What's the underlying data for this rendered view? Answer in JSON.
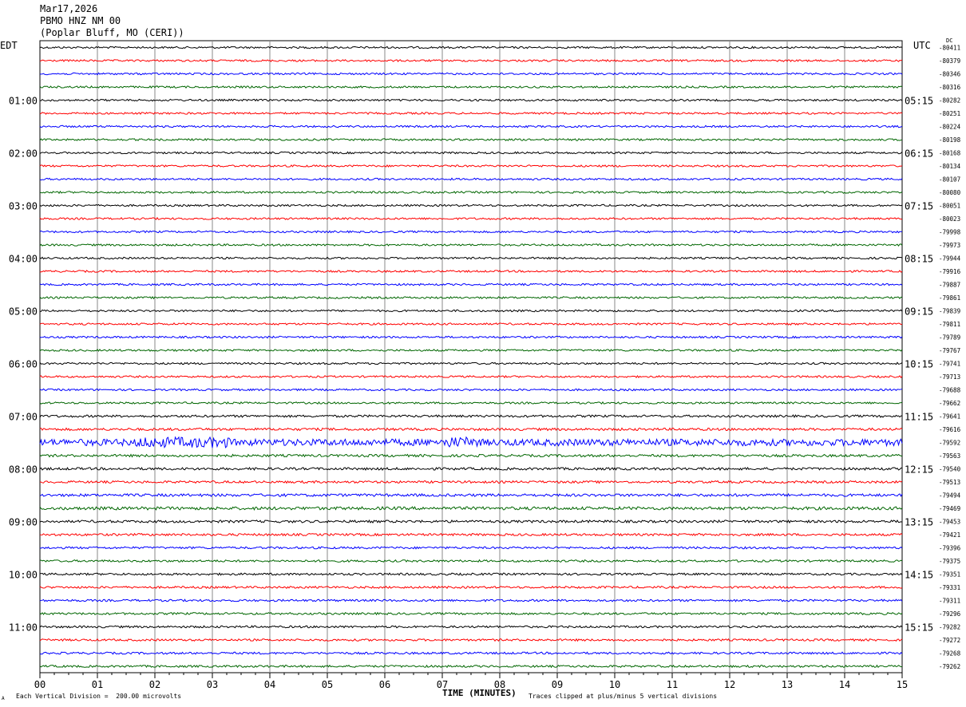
{
  "header": {
    "date": "Mar17,2026",
    "station": "PBMO HNZ NM 00",
    "location": "(Poplar Bluff, MO (CERI))"
  },
  "left_tz": "EDT",
  "right_tz": "UTC",
  "dc_label": "DC",
  "chart_data": {
    "type": "line",
    "title": "",
    "xlabel": "TIME (MINUTES)",
    "ylabel": "",
    "x_ticks": [
      "00",
      "01",
      "02",
      "03",
      "04",
      "05",
      "06",
      "07",
      "08",
      "09",
      "10",
      "11",
      "12",
      "13",
      "14",
      "15"
    ],
    "xlim": [
      0,
      15
    ],
    "grid": true,
    "trace_colors": [
      "#000000",
      "#ff0000",
      "#0000ff",
      "#006600"
    ],
    "left_hour_labels": [
      "01:00",
      "02:00",
      "03:00",
      "04:00",
      "05:00",
      "06:00",
      "07:00",
      "08:00",
      "09:00",
      "10:00",
      "11:00"
    ],
    "right_hour_labels": [
      "05:15",
      "06:15",
      "07:15",
      "08:15",
      "09:15",
      "10:15",
      "11:15",
      "12:15",
      "13:15",
      "14:15",
      "15:15"
    ],
    "dc_offsets": [
      -80411,
      -80379,
      -80346,
      -80316,
      -80282,
      -80251,
      -80224,
      -80198,
      -80168,
      -80134,
      -80107,
      -80080,
      -80051,
      -80023,
      -79998,
      -79973,
      -79944,
      -79916,
      -79887,
      -79861,
      -79839,
      -79811,
      -79789,
      -79767,
      -79741,
      -79713,
      -79688,
      -79662,
      -79641,
      -79616,
      -79592,
      -79563,
      -79540,
      -79513,
      -79494,
      -79469,
      -79453,
      -79421,
      -79396,
      -79375,
      -79351,
      -79331,
      -79311,
      -79296,
      -79282,
      -79272,
      -79268,
      -79262
    ],
    "trace_noise_amplitude": [
      1,
      1,
      1,
      1,
      1,
      1,
      1,
      1,
      1,
      1,
      1,
      1,
      1,
      1,
      1,
      1,
      1,
      1,
      1,
      1,
      1,
      1,
      1,
      1,
      1,
      1,
      1,
      1,
      1.2,
      1.3,
      3.5,
      1.3,
      1.3,
      1.2,
      1.4,
      1.6,
      1.3,
      1.2,
      1.1,
      1.1,
      1.1,
      1.1,
      1.1,
      1.1,
      1.1,
      1.1,
      1.1,
      1.1
    ]
  },
  "footer": {
    "scale_note": "Each Vertical Division =  200.00 microvolts",
    "clip_note": "Traces clipped at plus/minus 5 vertical divisions",
    "corner_mark": "A"
  }
}
